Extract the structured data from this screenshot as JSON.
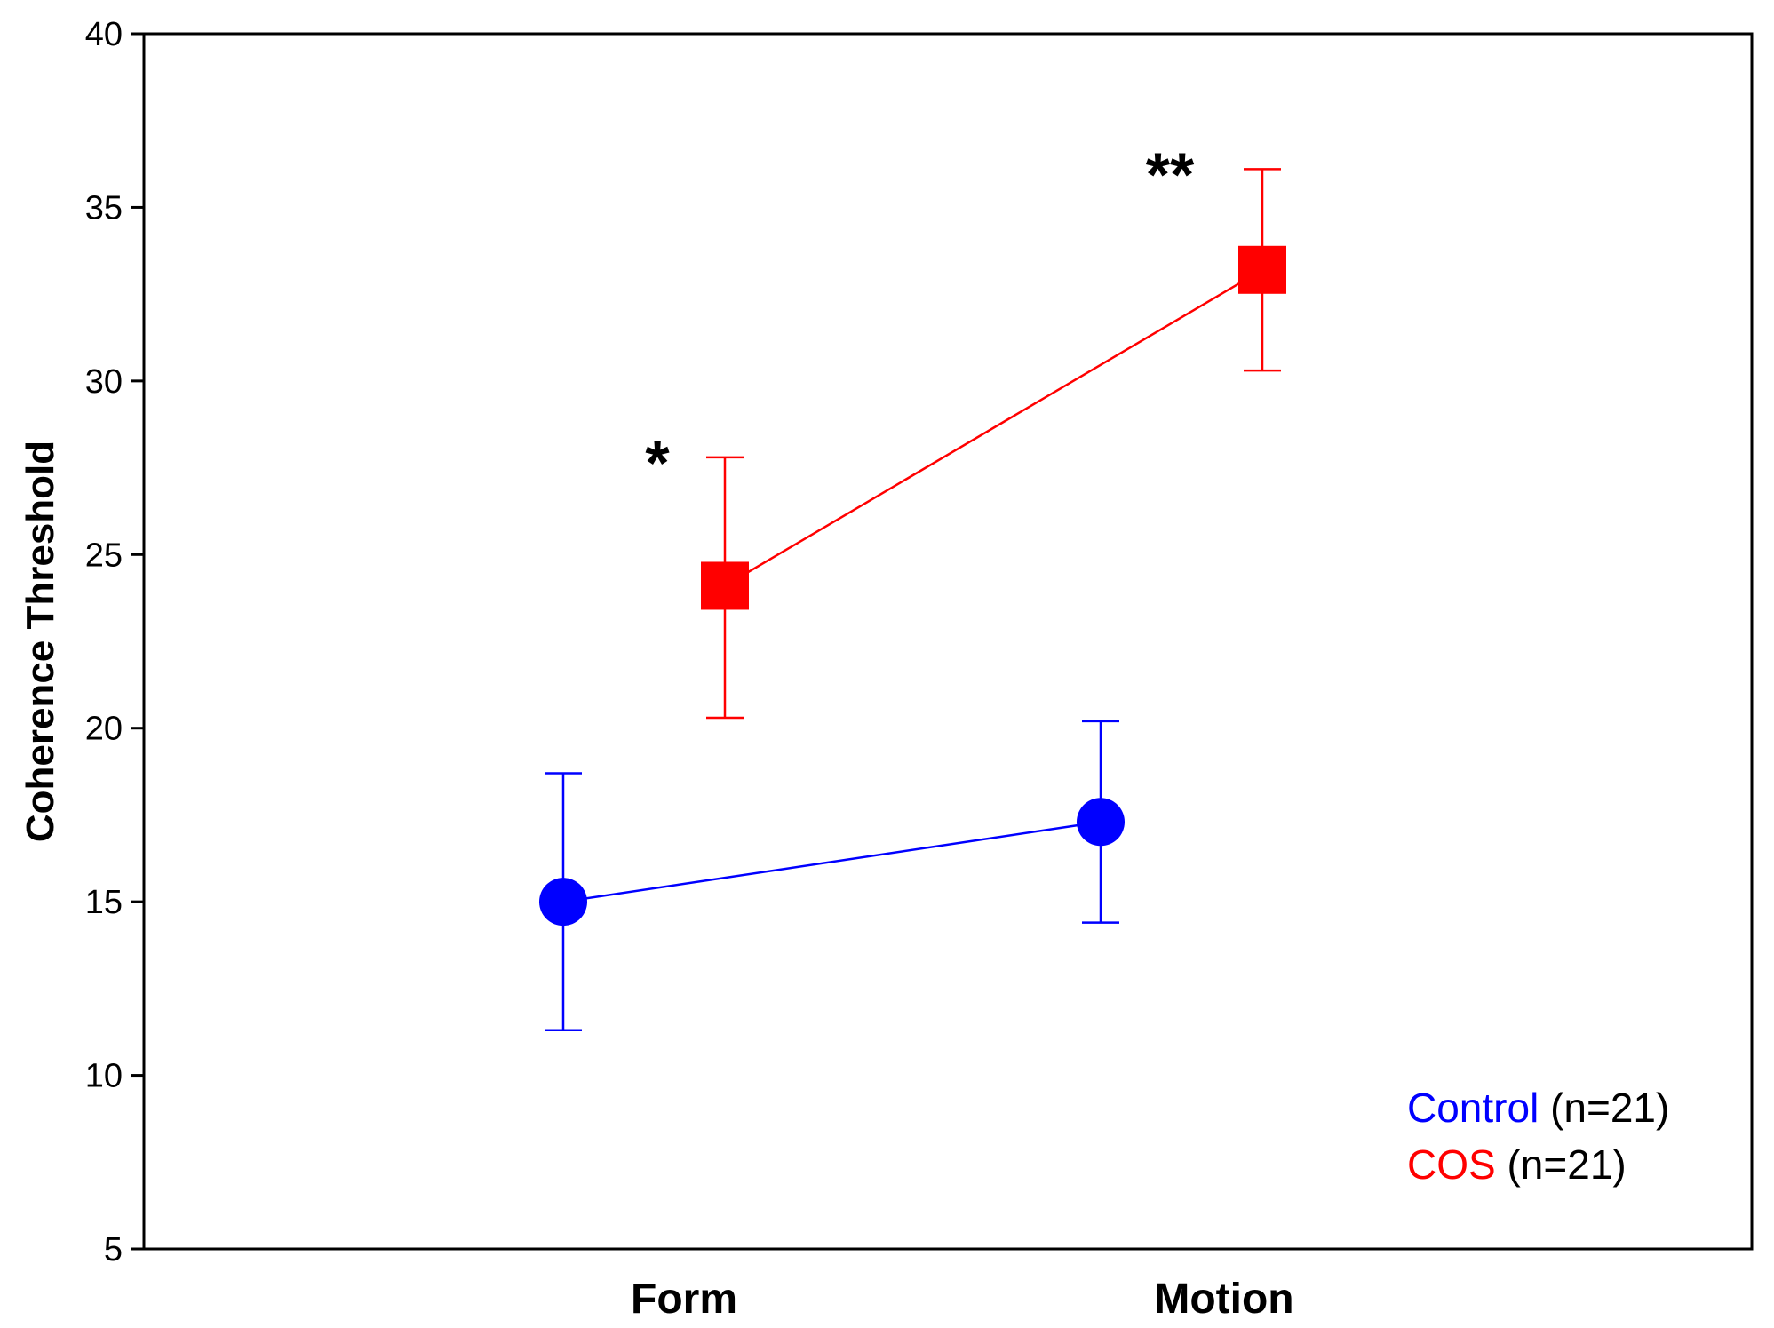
{
  "chart_data": {
    "type": "line",
    "title": "",
    "xlabel": "",
    "ylabel": "Coherence Threshold",
    "categories": [
      "Form",
      "Motion"
    ],
    "ylim": [
      5,
      40
    ],
    "yticks": [
      5,
      10,
      15,
      20,
      25,
      30,
      35,
      40
    ],
    "ytick_labels": [
      "5",
      "10",
      "15",
      "20",
      "25",
      "30",
      "35",
      "40"
    ],
    "grid": false,
    "legend_position": "bottom-right",
    "series": [
      {
        "name": "Control",
        "count_label": "(n=21)",
        "color": "#0000ff",
        "marker": "circle",
        "values": [
          15.0,
          17.3
        ],
        "error_low": [
          11.3,
          14.4
        ],
        "error_high": [
          18.7,
          20.2
        ],
        "annotations": [
          "",
          ""
        ]
      },
      {
        "name": "COS",
        "count_label": "(n=21)",
        "color": "#ff0000",
        "marker": "square",
        "values": [
          24.1,
          33.2
        ],
        "error_low": [
          20.3,
          30.3
        ],
        "error_high": [
          27.8,
          36.1
        ],
        "annotations": [
          "*",
          "**"
        ]
      }
    ]
  }
}
